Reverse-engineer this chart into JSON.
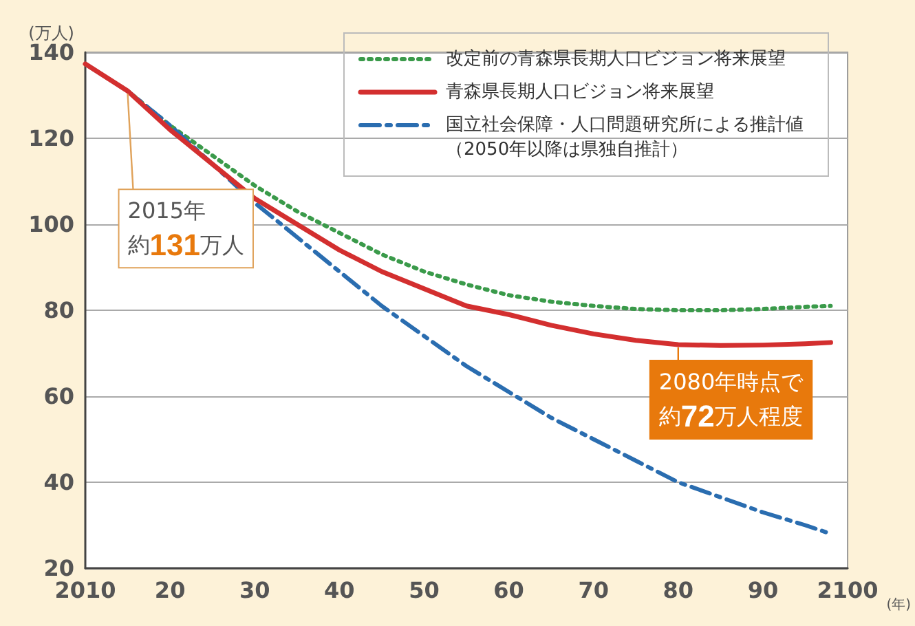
{
  "chart_data": {
    "type": "line",
    "ylabel": "(万人)",
    "xlabel": "(年)",
    "x": [
      2010,
      2015,
      2020,
      2025,
      2030,
      2035,
      2040,
      2045,
      2050,
      2055,
      2060,
      2065,
      2070,
      2075,
      2080,
      2085,
      2090,
      2095,
      2098
    ],
    "series": [
      {
        "name": "改定前の青森県長期人口ビジョン将来展望",
        "color": "#3a9a4a",
        "line_style": "dotted",
        "values": [
          137.3,
          131,
          123,
          116,
          109,
          103,
          98,
          93,
          89,
          86,
          83.5,
          82,
          81,
          80.3,
          80,
          80,
          80.3,
          80.8,
          81
        ]
      },
      {
        "name": "青森県長期人口ビジョン将来展望",
        "color": "#d32f2f",
        "line_style": "solid",
        "values": [
          137.3,
          131,
          122,
          114,
          106,
          100,
          94,
          89,
          85,
          81,
          79,
          76.5,
          74.5,
          73,
          72,
          71.8,
          71.9,
          72.2,
          72.5
        ]
      },
      {
        "name": "国立社会保障・人口問題研究所による推計値（2050年以降は県独自推計）",
        "color": "#2a6db0",
        "line_style": "dashed",
        "values": [
          137.3,
          131,
          123,
          114,
          105,
          97,
          89,
          81,
          74,
          67,
          61,
          55,
          50,
          45,
          40,
          36.5,
          33,
          30,
          28
        ]
      }
    ],
    "xlim": [
      2010,
      2100
    ],
    "xticks": [
      2010,
      {
        "value": 2020,
        "label": "20"
      },
      {
        "value": 2030,
        "label": "30"
      },
      {
        "value": 2040,
        "label": "40"
      },
      {
        "value": 2050,
        "label": "50"
      },
      {
        "value": 2060,
        "label": "60"
      },
      {
        "value": 2070,
        "label": "70"
      },
      {
        "value": 2080,
        "label": "80"
      },
      {
        "value": 2090,
        "label": "90"
      },
      2100
    ],
    "ylim": [
      20,
      140
    ],
    "yticks": [
      20,
      40,
      60,
      80,
      100,
      120,
      140
    ],
    "grid": "y",
    "legend": "top right",
    "marker": "none",
    "annotations": [
      {
        "text": "2015年約131万人",
        "x": 2015,
        "y": 131
      },
      {
        "text": "2080年時点で約72万人程度",
        "x": 2080,
        "y": 72
      }
    ]
  }
}
